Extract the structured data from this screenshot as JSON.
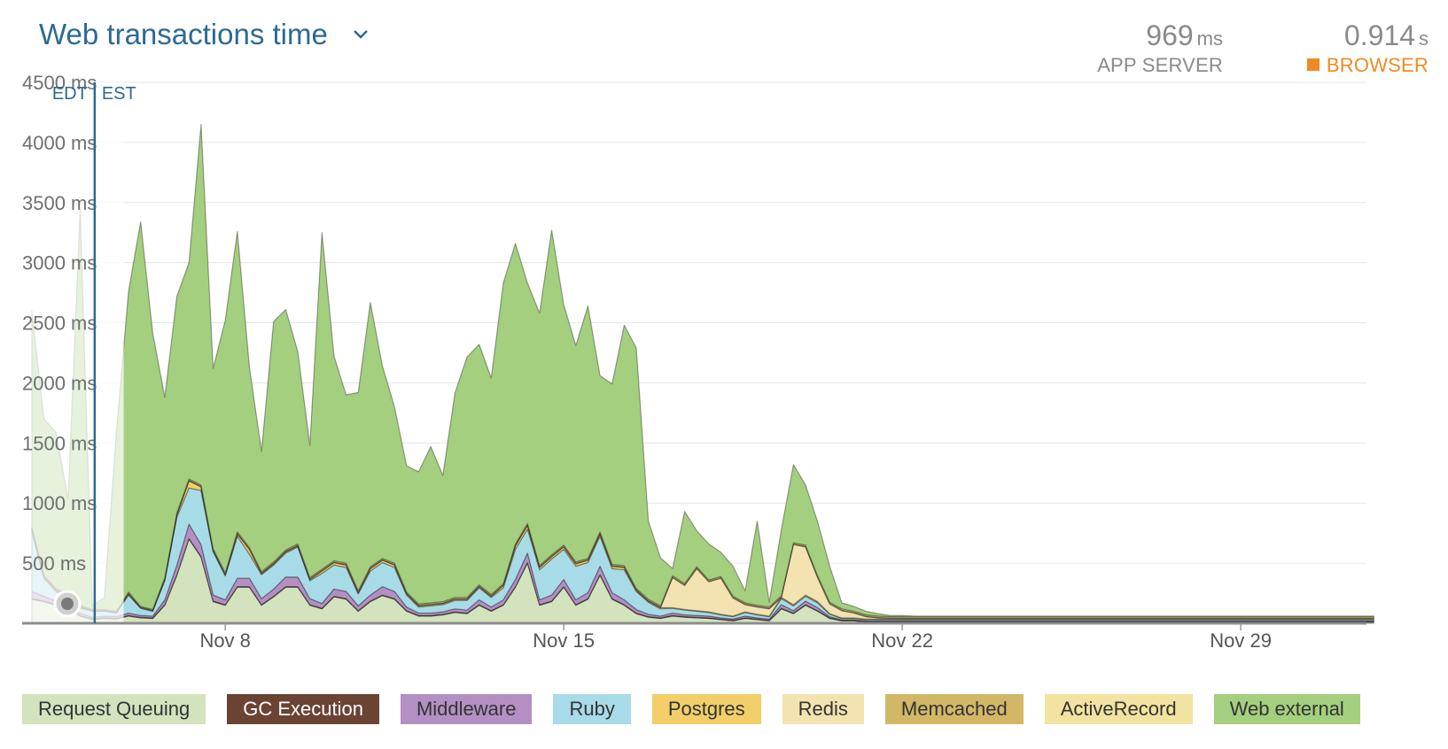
{
  "header": {
    "title": "Web transactions time",
    "app_server": {
      "value": "969",
      "unit": "ms",
      "label": "APP SERVER"
    },
    "browser": {
      "value": "0.914",
      "unit": "s",
      "label": "BROWSER"
    },
    "browser_color": "#f08a24"
  },
  "chart_data": {
    "type": "area",
    "stacked": true,
    "title": "Web transactions time",
    "y_ticks": [
      "4500 ms",
      "4000 ms",
      "3500 ms",
      "3000 ms",
      "2500 ms",
      "2000 ms",
      "1500 ms",
      "1000 ms",
      "500 ms"
    ],
    "y_tick_values": [
      4500,
      4000,
      3500,
      3000,
      2500,
      2000,
      1500,
      1000,
      500
    ],
    "ylim": [
      0,
      4500
    ],
    "x_ticks": [
      {
        "label": "Nov 8",
        "day": 8
      },
      {
        "label": "Nov 15",
        "day": 15
      },
      {
        "label": "Nov 22",
        "day": 22
      },
      {
        "label": "Nov 29",
        "day": 29
      }
    ],
    "x_range_days": [
      3.8,
      31.6
    ],
    "grid": true,
    "timezone_marker": {
      "day": 5.3,
      "before": "EDT",
      "after": "EST"
    },
    "faded_before_day": 5.9,
    "series": [
      {
        "name": "Request Queuing",
        "color": "#d3e3bd",
        "values": [
          200,
          180,
          150,
          120,
          60,
          30,
          40,
          35,
          60,
          45,
          40,
          150,
          400,
          700,
          550,
          180,
          150,
          300,
          300,
          150,
          220,
          300,
          300,
          150,
          120,
          220,
          200,
          100,
          180,
          230,
          200,
          100,
          60,
          60,
          70,
          90,
          80,
          150,
          100,
          150,
          300,
          500,
          150,
          180,
          300,
          150,
          200,
          400,
          200,
          150,
          80,
          50,
          40,
          60,
          50,
          45,
          40,
          30,
          20,
          40,
          30,
          20,
          120,
          80,
          150,
          100,
          40,
          20,
          20,
          10,
          10,
          10,
          10,
          10,
          10,
          10,
          10,
          10,
          10,
          10,
          10,
          10,
          10,
          10,
          10,
          10,
          10,
          10,
          10,
          10,
          10,
          10,
          10,
          10,
          10,
          10,
          10,
          10,
          10,
          10,
          10,
          10,
          10,
          10,
          10,
          10,
          10,
          10,
          10,
          10,
          10,
          10
        ]
      },
      {
        "name": "GC Execution",
        "color": "#6b4333",
        "values": [
          5,
          5,
          5,
          5,
          5,
          5,
          5,
          5,
          5,
          5,
          5,
          5,
          5,
          5,
          5,
          5,
          5,
          5,
          5,
          5,
          5,
          5,
          5,
          5,
          5,
          5,
          5,
          5,
          5,
          5,
          5,
          5,
          5,
          5,
          5,
          5,
          5,
          5,
          5,
          5,
          5,
          5,
          5,
          5,
          5,
          5,
          5,
          5,
          5,
          5,
          5,
          5,
          5,
          5,
          5,
          5,
          5,
          5,
          5,
          5,
          5,
          5,
          5,
          5,
          5,
          5,
          5,
          5,
          5,
          5,
          5,
          5,
          5,
          5,
          5,
          5,
          5,
          5,
          5,
          5,
          5,
          5,
          5,
          5,
          5,
          5,
          5,
          5,
          5,
          5,
          5,
          5,
          5,
          5,
          5,
          5,
          5,
          5,
          5,
          5,
          5,
          5,
          5,
          5,
          5,
          5,
          5,
          5,
          5,
          5,
          5,
          5
        ]
      },
      {
        "name": "Middleware",
        "color": "#b48fc4",
        "values": [
          60,
          40,
          30,
          25,
          20,
          15,
          15,
          15,
          20,
          15,
          15,
          40,
          80,
          120,
          100,
          50,
          40,
          70,
          70,
          50,
          60,
          80,
          80,
          50,
          40,
          60,
          60,
          40,
          50,
          70,
          60,
          30,
          20,
          20,
          20,
          25,
          25,
          40,
          30,
          40,
          60,
          80,
          40,
          50,
          60,
          40,
          50,
          70,
          50,
          40,
          30,
          20,
          15,
          20,
          15,
          15,
          15,
          10,
          10,
          15,
          10,
          10,
          30,
          20,
          30,
          25,
          10,
          5,
          5,
          5,
          5,
          5,
          5,
          5,
          5,
          5,
          5,
          5,
          5,
          5,
          5,
          5,
          5,
          5,
          5,
          5,
          5,
          5,
          5,
          5,
          5,
          5,
          5,
          5,
          5,
          5,
          5,
          5,
          5,
          5,
          5,
          5,
          5,
          5,
          5,
          5,
          5,
          5,
          5,
          5,
          5,
          5
        ]
      },
      {
        "name": "Ruby",
        "color": "#a8dbe8",
        "values": [
          500,
          150,
          80,
          60,
          40,
          50,
          40,
          30,
          150,
          60,
          40,
          160,
          400,
          300,
          450,
          360,
          200,
          350,
          200,
          200,
          200,
          200,
          250,
          150,
          250,
          200,
          200,
          100,
          200,
          200,
          200,
          100,
          50,
          60,
          60,
          70,
          80,
          100,
          80,
          100,
          250,
          200,
          250,
          300,
          250,
          280,
          250,
          250,
          200,
          250,
          150,
          100,
          60,
          40,
          40,
          35,
          30,
          25,
          20,
          30,
          25,
          20,
          50,
          40,
          40,
          40,
          20,
          10,
          10,
          10,
          10,
          10,
          10,
          10,
          10,
          10,
          10,
          10,
          10,
          10,
          10,
          10,
          10,
          10,
          10,
          10,
          10,
          10,
          10,
          10,
          10,
          10,
          10,
          10,
          10,
          10,
          10,
          10,
          10,
          10,
          10,
          10,
          10,
          10,
          10,
          10,
          10,
          10,
          10,
          10,
          10,
          10
        ]
      },
      {
        "name": "Postgres",
        "color": "#f2cf69",
        "values": [
          20,
          10,
          10,
          10,
          10,
          5,
          5,
          5,
          10,
          5,
          5,
          10,
          20,
          60,
          30,
          10,
          10,
          20,
          40,
          10,
          10,
          10,
          10,
          10,
          20,
          20,
          20,
          10,
          20,
          20,
          20,
          10,
          10,
          10,
          10,
          10,
          10,
          10,
          10,
          20,
          30,
          30,
          20,
          20,
          20,
          20,
          20,
          20,
          20,
          20,
          10,
          10,
          10,
          5,
          5,
          5,
          5,
          5,
          5,
          5,
          5,
          5,
          10,
          10,
          10,
          10,
          5,
          5,
          5,
          5,
          5,
          5,
          5,
          5,
          5,
          5,
          5,
          5,
          5,
          5,
          5,
          5,
          5,
          5,
          5,
          5,
          5,
          5,
          5,
          5,
          5,
          5,
          5,
          5,
          5,
          5,
          5,
          5,
          5,
          5,
          5,
          5,
          5,
          5,
          5,
          5,
          5,
          5,
          5,
          5,
          5,
          5
        ]
      },
      {
        "name": "Redis",
        "color": "#f3e3b0",
        "values": [
          0,
          0,
          0,
          0,
          0,
          0,
          0,
          0,
          0,
          0,
          0,
          0,
          0,
          0,
          0,
          0,
          0,
          0,
          0,
          0,
          0,
          0,
          0,
          0,
          0,
          0,
          0,
          0,
          0,
          0,
          0,
          0,
          0,
          0,
          0,
          0,
          0,
          0,
          0,
          0,
          0,
          0,
          0,
          0,
          0,
          0,
          0,
          0,
          0,
          0,
          0,
          0,
          0,
          250,
          200,
          350,
          250,
          300,
          150,
          60,
          60,
          60,
          0,
          500,
          400,
          200,
          80,
          60,
          40,
          20,
          10,
          5,
          5,
          5,
          5,
          5,
          5,
          5,
          5,
          5,
          5,
          5,
          5,
          5,
          5,
          5,
          5,
          5,
          5,
          5,
          5,
          5,
          5,
          5,
          5,
          5,
          5,
          5,
          5,
          5,
          5,
          5,
          5,
          5,
          5,
          5,
          5,
          5,
          5,
          5,
          5,
          5
        ]
      },
      {
        "name": "Memcached",
        "color": "#d2b767",
        "values": [
          5,
          5,
          5,
          5,
          5,
          5,
          5,
          5,
          5,
          5,
          5,
          5,
          5,
          5,
          5,
          5,
          5,
          5,
          5,
          5,
          5,
          5,
          5,
          5,
          5,
          5,
          5,
          5,
          5,
          5,
          5,
          5,
          5,
          5,
          5,
          5,
          5,
          5,
          5,
          5,
          5,
          5,
          5,
          5,
          5,
          5,
          5,
          5,
          5,
          5,
          5,
          5,
          5,
          5,
          5,
          5,
          5,
          5,
          5,
          5,
          5,
          5,
          5,
          5,
          5,
          5,
          5,
          5,
          5,
          5,
          5,
          5,
          5,
          5,
          5,
          5,
          5,
          5,
          5,
          5,
          5,
          5,
          5,
          5,
          5,
          5,
          5,
          5,
          5,
          5,
          5,
          5,
          5,
          5,
          5,
          5,
          5,
          5,
          5,
          5,
          5,
          5,
          5,
          5,
          5,
          5,
          5,
          5,
          5,
          5,
          5,
          5
        ]
      },
      {
        "name": "ActiveRecord",
        "color": "#f2e3a0",
        "values": [
          10,
          10,
          10,
          10,
          10,
          5,
          5,
          5,
          10,
          5,
          5,
          10,
          10,
          10,
          10,
          10,
          10,
          10,
          10,
          10,
          10,
          10,
          10,
          10,
          10,
          10,
          10,
          10,
          10,
          10,
          10,
          10,
          10,
          10,
          10,
          10,
          10,
          10,
          10,
          10,
          10,
          10,
          10,
          10,
          10,
          10,
          10,
          10,
          10,
          10,
          10,
          10,
          10,
          10,
          10,
          10,
          10,
          10,
          10,
          10,
          10,
          10,
          10,
          10,
          10,
          10,
          10,
          10,
          10,
          10,
          10,
          10,
          10,
          10,
          10,
          10,
          10,
          10,
          10,
          10,
          10,
          10,
          10,
          10,
          10,
          10,
          10,
          10,
          10,
          10,
          10,
          10,
          10,
          10,
          10,
          10,
          10,
          10,
          10,
          10,
          10,
          10,
          10,
          10,
          10,
          10,
          10,
          10,
          10,
          10,
          10,
          10
        ]
      },
      {
        "name": "Web external",
        "color": "#a4cf7e",
        "values": [
          1800,
          1300,
          1300,
          800,
          3300,
          30,
          100,
          1500,
          2500,
          3200,
          2300,
          1500,
          1800,
          1800,
          3000,
          1500,
          2100,
          2500,
          1500,
          1000,
          2000,
          2000,
          1600,
          1100,
          2800,
          1700,
          1400,
          1650,
          2200,
          1600,
          1300,
          1050,
          1100,
          1300,
          1050,
          1700,
          2000,
          2000,
          1800,
          2500,
          2500,
          2000,
          2100,
          2700,
          2000,
          1800,
          2100,
          1300,
          1500,
          2000,
          2000,
          650,
          400,
          60,
          600,
          300,
          300,
          200,
          250,
          100,
          700,
          40,
          550,
          650,
          500,
          450,
          300,
          50,
          40,
          30,
          20,
          10,
          10,
          5,
          5,
          5,
          5,
          5,
          5,
          5,
          5,
          5,
          5,
          5,
          5,
          5,
          5,
          5,
          5,
          5,
          5,
          5,
          5,
          5,
          5,
          5,
          5,
          5,
          5,
          5,
          5,
          5,
          5,
          5,
          5,
          5,
          5,
          5,
          5,
          5,
          5,
          5
        ]
      }
    ],
    "legend": [
      "Request Queuing",
      "GC Execution",
      "Middleware",
      "Ruby",
      "Postgres",
      "Redis",
      "Memcached",
      "ActiveRecord",
      "Web external"
    ],
    "legend_placement": "bottom"
  }
}
